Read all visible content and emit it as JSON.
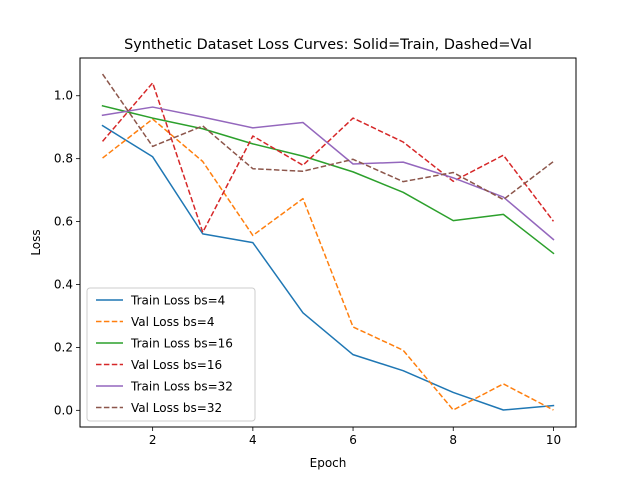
{
  "chart_data": {
    "type": "line",
    "title": "Synthetic Dataset Loss Curves: Solid=Train, Dashed=Val",
    "xlabel": "Epoch",
    "ylabel": "Loss",
    "xlim": [
      0.55,
      10.45
    ],
    "ylim": [
      -0.053,
      1.12
    ],
    "xticks": [
      2,
      4,
      6,
      8,
      10
    ],
    "yticks": [
      0.0,
      0.2,
      0.4,
      0.6,
      0.8,
      1.0
    ],
    "xtick_labels": [
      "2",
      "4",
      "6",
      "8",
      "10"
    ],
    "ytick_labels": [
      "0.0",
      "0.2",
      "0.4",
      "0.6",
      "0.8",
      "1.0"
    ],
    "grid": false,
    "legend_position": "lower-left",
    "x": [
      1,
      2,
      3,
      4,
      5,
      6,
      7,
      8,
      9,
      10
    ],
    "series": [
      {
        "name": "Train Loss bs=4",
        "color": "#1f77b4",
        "style": "solid",
        "values": [
          0.905,
          0.806,
          0.561,
          0.533,
          0.31,
          0.177,
          0.126,
          0.057,
          0.001,
          0.015
        ]
      },
      {
        "name": "Val Loss bs=4",
        "color": "#ff7f0e",
        "style": "dashed",
        "values": [
          0.802,
          0.926,
          0.791,
          0.556,
          0.673,
          0.265,
          0.191,
          0.001,
          0.084,
          0.001
        ]
      },
      {
        "name": "Train Loss bs=16",
        "color": "#2ca02c",
        "style": "solid",
        "values": [
          0.968,
          0.929,
          0.895,
          0.847,
          0.808,
          0.758,
          0.693,
          0.603,
          0.623,
          0.499
        ]
      },
      {
        "name": "Val Loss bs=16",
        "color": "#d62728",
        "style": "dashed",
        "values": [
          0.855,
          1.041,
          0.566,
          0.872,
          0.779,
          0.929,
          0.853,
          0.728,
          0.811,
          0.601
        ]
      },
      {
        "name": "Train Loss bs=32",
        "color": "#9467bd",
        "style": "solid",
        "values": [
          0.938,
          0.964,
          0.932,
          0.898,
          0.915,
          0.783,
          0.789,
          0.739,
          0.678,
          0.543
        ]
      },
      {
        "name": "Val Loss bs=32",
        "color": "#8c564b",
        "style": "dashed",
        "values": [
          1.069,
          0.839,
          0.904,
          0.768,
          0.76,
          0.798,
          0.727,
          0.756,
          0.67,
          0.791
        ]
      }
    ]
  }
}
